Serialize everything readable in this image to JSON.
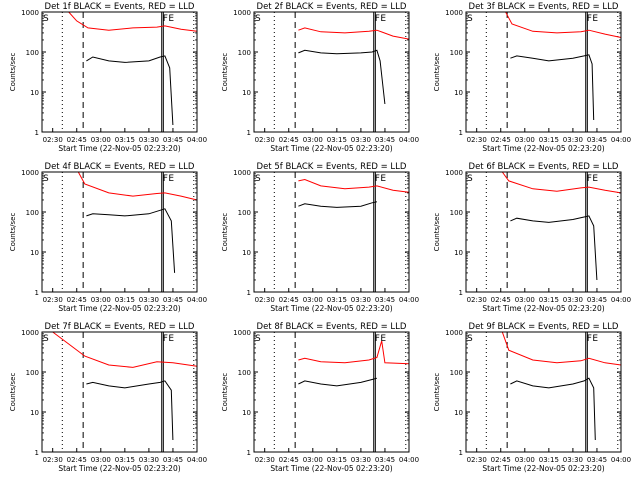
{
  "shared": {
    "ylabel": "Counts/sec",
    "xlabel": "Start Time (22-Nov-05 02:23:20)",
    "x_ticks": [
      "02:30",
      "02:45",
      "03:00",
      "03:15",
      "03:30",
      "03:45",
      "04:00"
    ],
    "y_ticks": [
      "1",
      "10",
      "100",
      "1000"
    ],
    "marker_s": "S",
    "marker_f": "F",
    "marker_e": "E",
    "colors": {
      "events": "#000000",
      "lld": "#ff0000"
    }
  },
  "chart_data": [
    {
      "type": "line",
      "scale_y": "log",
      "title": "Det 1f BLACK = Events, RED = LLD",
      "xlabel": "Start Time (22-Nov-05 02:23:20)",
      "ylabel": "Counts/sec",
      "xlim": [
        "02:23:20",
        "04:00"
      ],
      "ylim": [
        1,
        1000
      ],
      "series": [
        {
          "name": "Events",
          "color": "#000000",
          "x": [
            "02:51",
            "02:55",
            "03:05",
            "03:15",
            "03:30",
            "03:37",
            "03:40",
            "03:43",
            "03:45"
          ],
          "y": [
            60,
            75,
            60,
            55,
            60,
            75,
            80,
            40,
            1.5
          ]
        },
        {
          "name": "LLD",
          "color": "#ff0000",
          "x": [
            "02:40",
            "02:45",
            "02:52",
            "03:05",
            "03:20",
            "03:35",
            "03:40",
            "03:50",
            "04:00"
          ],
          "y": [
            1000,
            600,
            400,
            350,
            400,
            420,
            450,
            370,
            330
          ]
        }
      ]
    },
    {
      "type": "line",
      "scale_y": "log",
      "title": "Det 2f BLACK = Events, RED = LLD",
      "xlabel": "Start Time (22-Nov-05 02:23:20)",
      "ylabel": "Counts/sec",
      "xlim": [
        "02:23:20",
        "04:00"
      ],
      "ylim": [
        1,
        1000
      ],
      "series": [
        {
          "name": "Events",
          "color": "#000000",
          "x": [
            "02:51",
            "02:55",
            "03:05",
            "03:15",
            "03:30",
            "03:37",
            "03:40",
            "03:42",
            "03:45"
          ],
          "y": [
            95,
            110,
            95,
            90,
            95,
            100,
            110,
            60,
            5
          ]
        },
        {
          "name": "LLD",
          "color": "#ff0000",
          "x": [
            "02:51",
            "02:55",
            "03:05",
            "03:20",
            "03:35",
            "03:40",
            "03:50",
            "04:00"
          ],
          "y": [
            350,
            400,
            320,
            300,
            330,
            350,
            250,
            210
          ]
        }
      ]
    },
    {
      "type": "line",
      "scale_y": "log",
      "title": "Det 3f BLACK = Events, RED = LLD",
      "xlabel": "Start Time (22-Nov-05 02:23:20)",
      "ylabel": "Counts/sec",
      "xlim": [
        "02:23:20",
        "04:00"
      ],
      "ylim": [
        1,
        1000
      ],
      "series": [
        {
          "name": "Events",
          "color": "#000000",
          "x": [
            "02:51",
            "02:55",
            "03:05",
            "03:15",
            "03:30",
            "03:37",
            "03:40",
            "03:42",
            "03:43"
          ],
          "y": [
            70,
            80,
            70,
            60,
            70,
            80,
            85,
            50,
            2
          ]
        },
        {
          "name": "LLD",
          "color": "#ff0000",
          "x": [
            "02:48",
            "02:52",
            "03:05",
            "03:20",
            "03:35",
            "03:40",
            "03:50",
            "04:00"
          ],
          "y": [
            1000,
            500,
            330,
            300,
            320,
            350,
            280,
            230
          ]
        }
      ]
    },
    {
      "type": "line",
      "scale_y": "log",
      "title": "Det 4f BLACK = Events, RED = LLD",
      "xlabel": "Start Time (22-Nov-05 02:23:20)",
      "ylabel": "Counts/sec",
      "xlim": [
        "02:23:20",
        "04:00"
      ],
      "ylim": [
        1,
        1000
      ],
      "series": [
        {
          "name": "Events",
          "color": "#000000",
          "x": [
            "02:51",
            "02:55",
            "03:05",
            "03:15",
            "03:30",
            "03:37",
            "03:40",
            "03:44",
            "03:46"
          ],
          "y": [
            80,
            90,
            85,
            80,
            90,
            110,
            120,
            60,
            3
          ]
        },
        {
          "name": "LLD",
          "color": "#ff0000",
          "x": [
            "02:46",
            "02:50",
            "03:05",
            "03:20",
            "03:35",
            "03:40",
            "03:50",
            "04:00"
          ],
          "y": [
            1000,
            500,
            300,
            250,
            290,
            300,
            250,
            200
          ]
        }
      ]
    },
    {
      "type": "line",
      "scale_y": "log",
      "title": "Det 5f BLACK = Events, RED = LLD",
      "xlabel": "Start Time (22-Nov-05 02:23:20)",
      "ylabel": "Counts/sec",
      "xlim": [
        "02:23:20",
        "04:00"
      ],
      "ylim": [
        1,
        1000
      ],
      "series": [
        {
          "name": "Events",
          "color": "#000000",
          "x": [
            "02:51",
            "02:55",
            "03:05",
            "03:15",
            "03:30",
            "03:37",
            "03:40"
          ],
          "y": [
            140,
            160,
            140,
            130,
            140,
            170,
            180
          ]
        },
        {
          "name": "LLD",
          "color": "#ff0000",
          "x": [
            "02:51",
            "02:55",
            "03:05",
            "03:20",
            "03:35",
            "03:40",
            "03:50",
            "04:00"
          ],
          "y": [
            600,
            650,
            450,
            380,
            420,
            450,
            350,
            310
          ]
        }
      ]
    },
    {
      "type": "line",
      "scale_y": "log",
      "title": "Det 6f BLACK = Events, RED = LLD",
      "xlabel": "Start Time (22-Nov-05 02:23:20)",
      "ylabel": "Counts/sec",
      "xlim": [
        "02:23:20",
        "04:00"
      ],
      "ylim": [
        1,
        1000
      ],
      "series": [
        {
          "name": "Events",
          "color": "#000000",
          "x": [
            "02:51",
            "02:55",
            "03:05",
            "03:15",
            "03:30",
            "03:37",
            "03:40",
            "03:43",
            "03:45"
          ],
          "y": [
            60,
            70,
            60,
            55,
            65,
            75,
            80,
            45,
            2
          ]
        },
        {
          "name": "LLD",
          "color": "#ff0000",
          "x": [
            "02:46",
            "02:50",
            "03:05",
            "03:20",
            "03:35",
            "03:40",
            "03:50",
            "04:00"
          ],
          "y": [
            1000,
            600,
            380,
            330,
            400,
            420,
            350,
            300
          ]
        }
      ]
    },
    {
      "type": "line",
      "scale_y": "log",
      "title": "Det 7f BLACK = Events, RED = LLD",
      "xlabel": "Start Time (22-Nov-05 02:23:20)",
      "ylabel": "Counts/sec",
      "xlim": [
        "02:23:20",
        "04:00"
      ],
      "ylim": [
        1,
        1000
      ],
      "series": [
        {
          "name": "Events",
          "color": "#000000",
          "x": [
            "02:51",
            "02:55",
            "03:05",
            "03:15",
            "03:30",
            "03:37",
            "03:40",
            "03:44",
            "03:45"
          ],
          "y": [
            50,
            55,
            45,
            40,
            50,
            55,
            60,
            35,
            2
          ]
        },
        {
          "name": "LLD",
          "color": "#ff0000",
          "x": [
            "02:30",
            "02:40",
            "02:50",
            "03:05",
            "03:20",
            "03:35",
            "03:45",
            "04:00"
          ],
          "y": [
            1000,
            500,
            250,
            150,
            130,
            180,
            170,
            140
          ]
        }
      ]
    },
    {
      "type": "line",
      "scale_y": "log",
      "title": "Det 8f BLACK = Events, RED = LLD",
      "xlabel": "Start Time (22-Nov-05 02:23:20)",
      "ylabel": "Counts/sec",
      "xlim": [
        "02:23:20",
        "04:00"
      ],
      "ylim": [
        1,
        1000
      ],
      "series": [
        {
          "name": "Events",
          "color": "#000000",
          "x": [
            "02:51",
            "02:55",
            "03:05",
            "03:15",
            "03:30",
            "03:37",
            "03:40"
          ],
          "y": [
            50,
            60,
            50,
            45,
            55,
            65,
            70
          ]
        },
        {
          "name": "LLD",
          "color": "#ff0000",
          "x": [
            "02:51",
            "02:55",
            "03:05",
            "03:20",
            "03:35",
            "03:40",
            "03:43",
            "03:45",
            "04:00"
          ],
          "y": [
            200,
            220,
            180,
            170,
            200,
            230,
            600,
            170,
            160
          ]
        }
      ]
    },
    {
      "type": "line",
      "scale_y": "log",
      "title": "Det 9f BLACK = Events, RED = LLD",
      "xlabel": "Start Time (22-Nov-05 02:23:20)",
      "ylabel": "Counts/sec",
      "xlim": [
        "02:23:20",
        "04:00"
      ],
      "ylim": [
        1,
        1000
      ],
      "series": [
        {
          "name": "Events",
          "color": "#000000",
          "x": [
            "02:51",
            "02:55",
            "03:05",
            "03:15",
            "03:30",
            "03:37",
            "03:40",
            "03:43",
            "03:44"
          ],
          "y": [
            50,
            60,
            45,
            40,
            50,
            60,
            70,
            40,
            2
          ]
        },
        {
          "name": "LLD",
          "color": "#ff0000",
          "x": [
            "02:46",
            "02:50",
            "03:05",
            "03:20",
            "03:35",
            "03:40",
            "03:50",
            "04:00"
          ],
          "y": [
            1000,
            350,
            200,
            170,
            190,
            220,
            170,
            150
          ]
        }
      ]
    }
  ]
}
